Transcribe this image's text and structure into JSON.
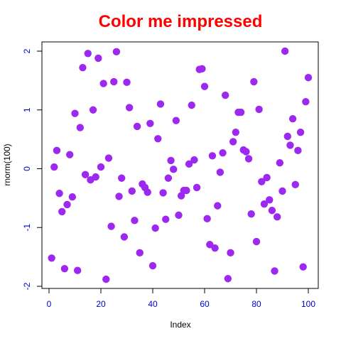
{
  "chart_data": {
    "type": "scatter",
    "title": "Color me impressed",
    "xlabel": "Index",
    "ylabel": "rnorm(100)",
    "xlim": [
      0,
      100
    ],
    "ylim": [
      -2,
      2
    ],
    "x_ticks": [
      "0",
      "20",
      "40",
      "60",
      "80",
      "100"
    ],
    "y_ticks": [
      "-2",
      "-1",
      "0",
      "1",
      "2"
    ],
    "grid": false,
    "legend": "none",
    "series": [
      {
        "x": [
          1,
          2,
          3,
          4,
          5,
          6,
          7,
          8,
          9,
          10,
          11,
          12,
          13,
          14,
          15,
          16,
          17,
          18,
          19,
          20,
          21,
          22,
          23,
          24,
          25,
          26,
          27,
          28,
          29,
          30,
          31,
          32,
          33,
          34,
          35,
          36,
          37,
          38,
          39,
          40,
          41,
          42,
          43,
          44,
          45,
          46,
          47,
          48,
          49,
          50,
          51,
          52,
          53,
          54,
          55,
          56,
          57,
          58,
          59,
          60,
          61,
          62,
          63,
          64,
          65,
          66,
          67,
          68,
          69,
          70,
          71,
          72,
          73,
          74,
          75,
          76,
          77,
          78,
          79,
          80,
          81,
          82,
          83,
          84,
          85,
          86,
          87,
          88,
          89,
          90,
          91,
          92,
          93,
          94,
          95,
          96,
          97,
          98,
          99,
          100
        ],
        "y": [
          -1.52,
          0.03,
          0.31,
          -0.42,
          -0.73,
          -1.7,
          -0.61,
          0.24,
          -0.48,
          0.94,
          -1.73,
          0.7,
          1.72,
          -0.1,
          1.96,
          -0.19,
          1.0,
          -0.14,
          1.88,
          0.03,
          1.45,
          -1.88,
          0.18,
          -0.98,
          1.48,
          1.99,
          -0.47,
          -0.16,
          -1.16,
          1.47,
          1.04,
          -0.38,
          -0.88,
          0.72,
          -1.43,
          -0.26,
          -0.32,
          -0.4,
          0.77,
          -1.65,
          -1.01,
          0.51,
          1.1,
          -0.41,
          -0.86,
          -0.16,
          0.14,
          -0.01,
          0.82,
          -0.79,
          -0.46,
          -0.37,
          -0.37,
          0.08,
          1.08,
          0.15,
          -0.32,
          1.69,
          1.7,
          1.4,
          -0.85,
          -1.29,
          0.22,
          -1.35,
          -0.63,
          -0.06,
          0.27,
          1.25,
          -1.87,
          -1.43,
          0.46,
          0.62,
          0.96,
          0.96,
          0.32,
          0.29,
          0.17,
          -0.77,
          1.48,
          -1.24,
          1.01,
          -0.22,
          -0.6,
          -0.15,
          -0.53,
          -0.71,
          -1.74,
          -0.82,
          0.1,
          -0.38,
          2.0,
          0.55,
          0.4,
          0.85,
          -0.27,
          0.31,
          0.62,
          -1.67,
          1.14,
          1.55
        ]
      }
    ],
    "colors": {
      "title": "#ff0000",
      "points": "#9d28f0",
      "ticks": "#0000cd",
      "axes": "#000000",
      "background": "#ffffff"
    }
  }
}
